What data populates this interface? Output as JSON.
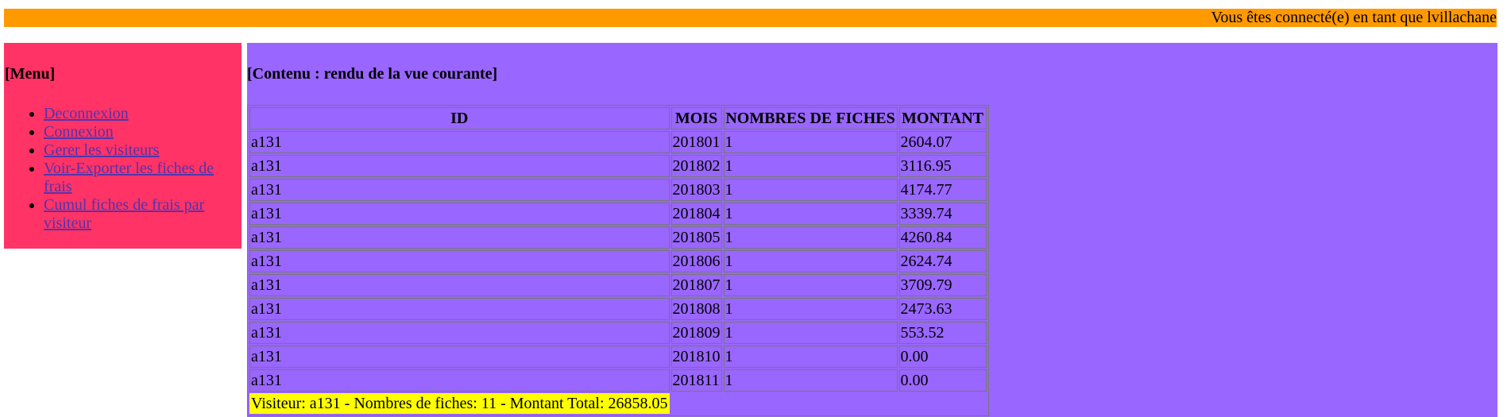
{
  "header": {
    "connected_text": "Vous êtes connecté(e) en tant que lvillachane"
  },
  "sidebar": {
    "title": "[Menu]",
    "items": [
      {
        "label": "Deconnexion"
      },
      {
        "label": "Connexion"
      },
      {
        "label": "Gerer les visiteurs"
      },
      {
        "label": "Voir-Exporter les fiches de frais"
      },
      {
        "label": "Cumul fiches de frais par visiteur"
      }
    ]
  },
  "main": {
    "title": "[Contenu : rendu de la vue courante]",
    "table": {
      "headers": [
        "ID",
        "MOIS",
        "NOMBRES DE FICHES",
        "MONTANT"
      ],
      "rows": [
        [
          "a131",
          "201801",
          "1",
          "2604.07"
        ],
        [
          "a131",
          "201802",
          "1",
          "3116.95"
        ],
        [
          "a131",
          "201803",
          "1",
          "4174.77"
        ],
        [
          "a131",
          "201804",
          "1",
          "3339.74"
        ],
        [
          "a131",
          "201805",
          "1",
          "4260.84"
        ],
        [
          "a131",
          "201806",
          "1",
          "2624.74"
        ],
        [
          "a131",
          "201807",
          "1",
          "3709.79"
        ],
        [
          "a131",
          "201808",
          "1",
          "2473.63"
        ],
        [
          "a131",
          "201809",
          "1",
          "553.52"
        ],
        [
          "a131",
          "201810",
          "1",
          "0.00"
        ],
        [
          "a131",
          "201811",
          "1",
          "0.00"
        ]
      ],
      "summary": "Visiteur: a131 - Nombres de fiches: 11 - Montant Total: 26858.05"
    }
  },
  "colors": {
    "topbar": "#ff9900",
    "sidebar": "#ff3366",
    "content": "#9966ff",
    "summary_highlight": "#ffff00"
  }
}
